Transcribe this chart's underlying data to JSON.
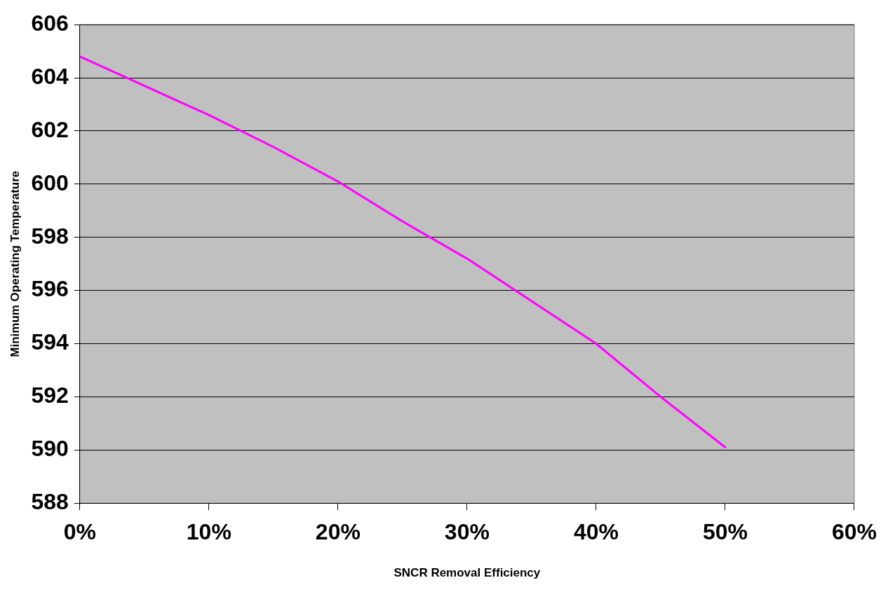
{
  "chart_data": {
    "type": "line",
    "xlabel": "SNCR Removal Efficiency",
    "ylabel": "Minimum Operating Temperature",
    "x": [
      0,
      5,
      10,
      15,
      20,
      25,
      30,
      35,
      40,
      45,
      50
    ],
    "series": [
      {
        "color": "#ff00ff",
        "values": [
          604.8,
          603.7,
          602.6,
          601.4,
          600.1,
          598.6,
          597.2,
          595.6,
          594.0,
          592.0,
          590.1
        ]
      }
    ],
    "xlim": [
      0,
      60
    ],
    "xticks": [
      {
        "value": 0,
        "label": "0%"
      },
      {
        "value": 10,
        "label": "10%"
      },
      {
        "value": 20,
        "label": "20%"
      },
      {
        "value": 30,
        "label": "30%"
      },
      {
        "value": 40,
        "label": "40%"
      },
      {
        "value": 50,
        "label": "50%"
      },
      {
        "value": 60,
        "label": "60%"
      }
    ],
    "ylim": [
      588,
      606
    ],
    "yticks": [
      588,
      590,
      592,
      594,
      596,
      598,
      600,
      602,
      604,
      606
    ],
    "grid": "y",
    "legend": false,
    "marker": "none",
    "line_style": "solid"
  }
}
